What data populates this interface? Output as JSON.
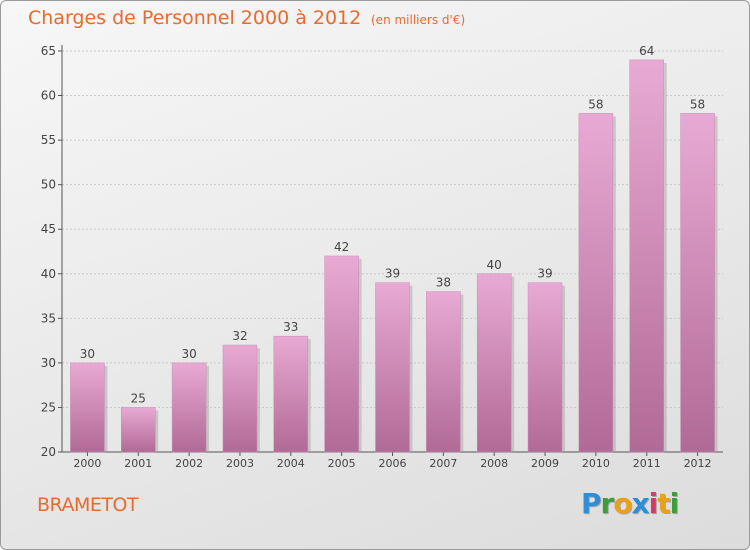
{
  "header": {
    "title": "Charges de Personnel 2000 à 2012",
    "subtitle": "(en milliers d'€)"
  },
  "footer": {
    "town": "BRAMETOT",
    "logo": [
      "P",
      "r",
      "o",
      "x",
      "i",
      "t",
      "i"
    ]
  },
  "colors": {
    "text_accent": "#e86a2e",
    "bar_top": "#e8aad4",
    "bar_bottom": "#b06a95",
    "bar_shadow": "#a0a0a0"
  },
  "chart_data": {
    "type": "bar",
    "title": "Charges de Personnel 2000 à 2012",
    "subtitle": "(en milliers d'€)",
    "categories": [
      "2000",
      "2001",
      "2002",
      "2003",
      "2004",
      "2005",
      "2006",
      "2007",
      "2008",
      "2009",
      "2010",
      "2011",
      "2012"
    ],
    "values": [
      30,
      25,
      30,
      32,
      33,
      42,
      39,
      38,
      40,
      39,
      58,
      64,
      58
    ],
    "ylim": [
      20,
      65
    ],
    "yticks": [
      20,
      25,
      30,
      35,
      40,
      45,
      50,
      55,
      60,
      65
    ],
    "grid": true,
    "data_labels": true
  }
}
